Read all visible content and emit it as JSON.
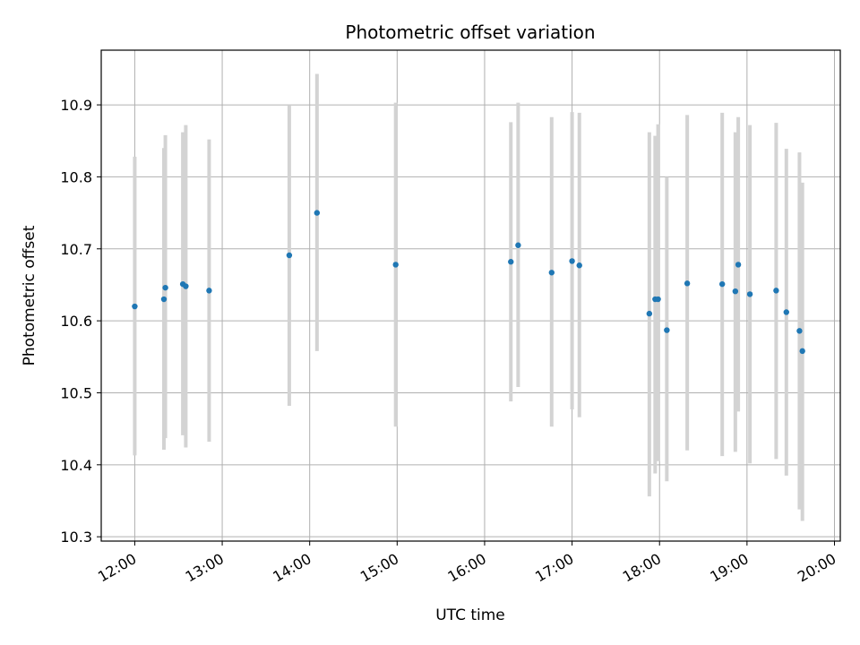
{
  "chart_data": {
    "type": "scatter",
    "title": "Photometric offset variation",
    "xlabel": "UTC time",
    "ylabel": "Photometric offset",
    "grid": true,
    "xlim": [
      "11:37",
      "20:04"
    ],
    "ylim": [
      10.294,
      10.976
    ],
    "x_ticks": [
      "12:00",
      "13:00",
      "14:00",
      "15:00",
      "16:00",
      "17:00",
      "18:00",
      "19:00",
      "20:00"
    ],
    "y_ticks": [
      10.3,
      10.4,
      10.5,
      10.6,
      10.7,
      10.8,
      10.9
    ],
    "y_tick_labels": [
      "10.3",
      "10.4",
      "10.5",
      "10.6",
      "10.7",
      "10.8",
      "10.9"
    ],
    "colors": {
      "point": "#1f77b4",
      "errorbar": "#d3d3d3",
      "grid": "#b0b0b0"
    },
    "series": [
      {
        "x": [
          "12:00",
          "12:20",
          "12:21",
          "12:33",
          "12:35",
          "12:51",
          "13:46",
          "14:05",
          "14:59",
          "16:18",
          "16:23",
          "16:46",
          "17:00",
          "17:05",
          "17:53",
          "17:57",
          "17:59",
          "18:05",
          "18:19",
          "18:43",
          "18:52",
          "18:54",
          "19:02",
          "19:20",
          "19:27",
          "19:36",
          "19:38"
        ],
        "y": [
          10.62,
          10.63,
          10.646,
          10.651,
          10.648,
          10.642,
          10.691,
          10.75,
          10.678,
          10.682,
          10.705,
          10.667,
          10.683,
          10.677,
          10.61,
          10.63,
          10.63,
          10.587,
          10.652,
          10.651,
          10.641,
          10.678,
          10.637,
          10.642,
          10.612,
          10.586,
          10.558
        ],
        "yerr_low": [
          10.413,
          10.421,
          10.437,
          10.441,
          10.424,
          10.432,
          10.482,
          10.558,
          10.453,
          10.488,
          10.508,
          10.453,
          10.477,
          10.466,
          10.356,
          10.388,
          10.405,
          10.377,
          10.42,
          10.412,
          10.418,
          10.474,
          10.402,
          10.408,
          10.385,
          10.338,
          10.322
        ],
        "yerr_high": [
          10.828,
          10.84,
          10.858,
          10.862,
          10.872,
          10.852,
          10.9,
          10.943,
          10.903,
          10.876,
          10.903,
          10.883,
          10.89,
          10.889,
          10.862,
          10.857,
          10.873,
          10.8,
          10.886,
          10.889,
          10.862,
          10.883,
          10.872,
          10.875,
          10.839,
          10.834,
          10.792
        ]
      }
    ]
  }
}
